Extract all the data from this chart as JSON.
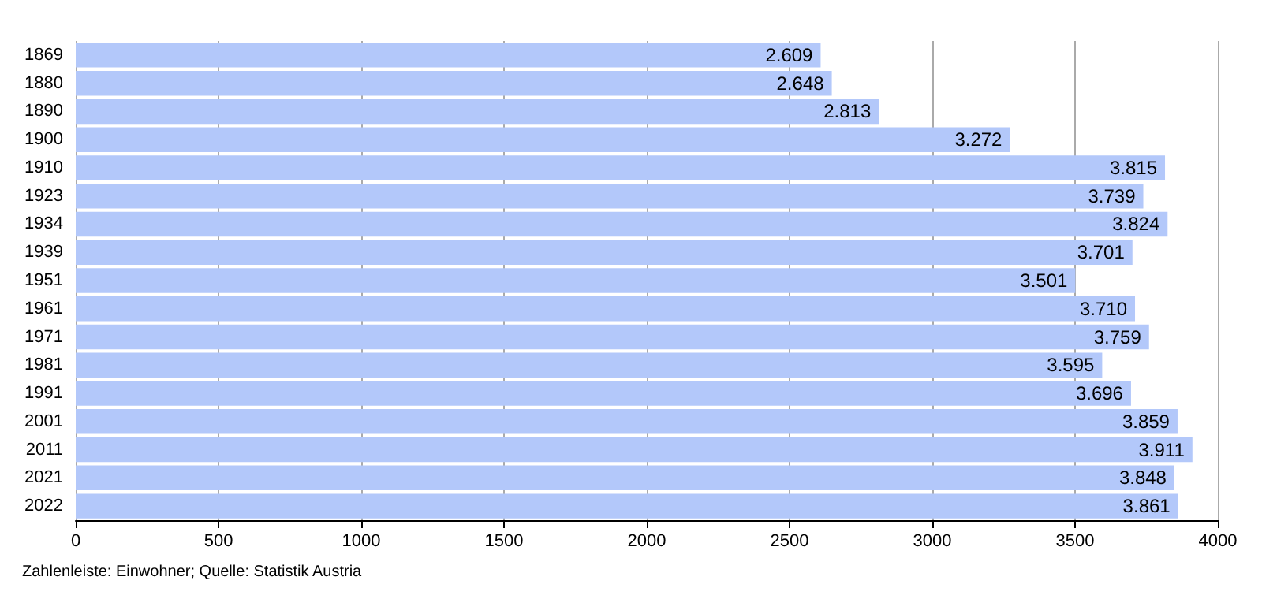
{
  "chart_data": {
    "type": "bar",
    "orientation": "horizontal",
    "categories": [
      "1869",
      "1880",
      "1890",
      "1900",
      "1910",
      "1923",
      "1934",
      "1939",
      "1951",
      "1961",
      "1971",
      "1981",
      "1991",
      "2001",
      "2011",
      "2021",
      "2022"
    ],
    "values": [
      2609,
      2648,
      2813,
      3272,
      3815,
      3739,
      3824,
      3701,
      3501,
      3710,
      3759,
      3595,
      3696,
      3859,
      3911,
      3848,
      3861
    ],
    "value_labels": [
      "2.609",
      "2.648",
      "2.813",
      "3.272",
      "3.815",
      "3.739",
      "3.824",
      "3.701",
      "3.501",
      "3.710",
      "3.759",
      "3.595",
      "3.696",
      "3.859",
      "3.911",
      "3.848",
      "3.861"
    ],
    "color": "#b3c8fa",
    "xlim": [
      0,
      4000
    ],
    "xticks": [
      0,
      500,
      1000,
      1500,
      2000,
      2500,
      3000,
      3500,
      4000
    ],
    "grid": "x",
    "annotations": [
      "Zahlenleiste: Einwohner; Quelle: Statistik Austria"
    ]
  }
}
